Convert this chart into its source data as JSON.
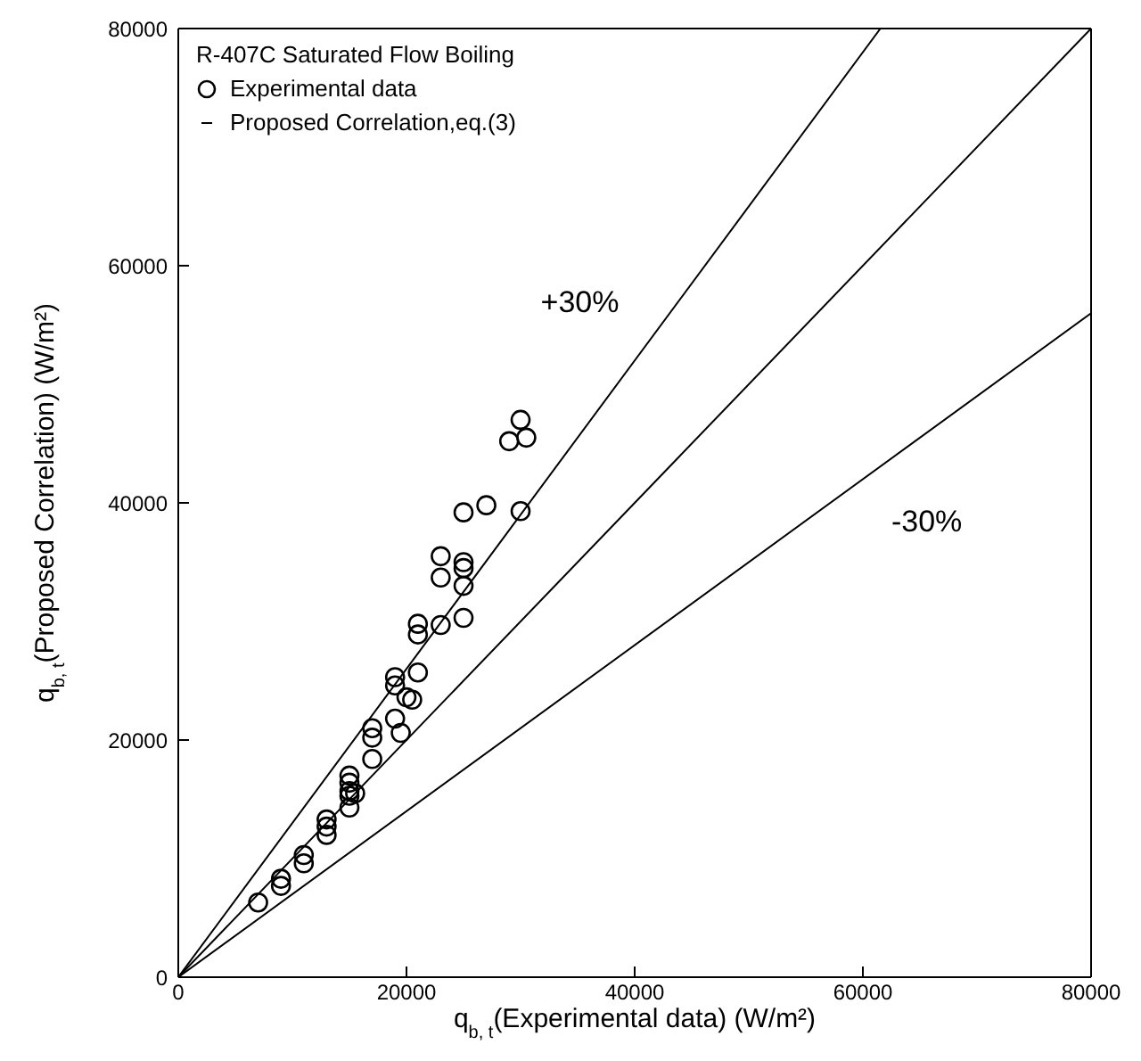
{
  "chart_data": {
    "type": "scatter",
    "legend_title": "R-407C Saturated Flow Boiling",
    "xlabel": "q$_{b, t}$(Experimental data) (W/m²)",
    "ylabel": "q$_{b, t}$(Proposed Correlation) (W/m²)",
    "xlim": [
      0,
      80000
    ],
    "ylim": [
      0,
      80000
    ],
    "xticks": [
      0,
      20000,
      40000,
      60000,
      80000
    ],
    "yticks": [
      0,
      20000,
      40000,
      60000,
      80000
    ],
    "grid": false,
    "legend": "top left",
    "annotations": [
      "+30%",
      "-30%"
    ],
    "series": [
      {
        "name": "Experimental data",
        "marker": "circle",
        "color": "#000000",
        "x": [
          7000,
          9000,
          9000,
          11000,
          11000,
          13000,
          13000,
          13000,
          15000,
          15000,
          15000,
          15000,
          15000,
          15500,
          17000,
          17000,
          17000,
          19000,
          19000,
          19000,
          19500,
          20000,
          20500,
          21000,
          21000,
          21000,
          23000,
          23000,
          23000,
          25000,
          25000,
          25000,
          25000,
          25000,
          27000,
          29000,
          30000,
          30500,
          30000
        ],
        "values": [
          6300,
          7700,
          8300,
          9600,
          10300,
          12000,
          12700,
          13300,
          14300,
          15300,
          15700,
          16400,
          17000,
          15500,
          18400,
          20200,
          21000,
          21800,
          24600,
          25300,
          20600,
          23600,
          23400,
          25700,
          28900,
          29800,
          29700,
          33700,
          35500,
          30300,
          33000,
          34500,
          35000,
          39200,
          39800,
          45200,
          47000,
          45500,
          39300
        ]
      },
      {
        "name": "Proposed Correlation,eq.(3)",
        "type": "line",
        "marker": "none",
        "line_style": "solid",
        "color": "#000000",
        "x": [
          0,
          80000
        ],
        "values": [
          0,
          80000
        ]
      },
      {
        "type": "line",
        "marker": "none",
        "line_style": "solid",
        "color": "#000000",
        "x": [
          0,
          61538
        ],
        "values": [
          0,
          80000
        ]
      },
      {
        "type": "line",
        "marker": "none",
        "line_style": "solid",
        "color": "#000000",
        "x": [
          0,
          80000
        ],
        "values": [
          0,
          56000
        ]
      }
    ]
  }
}
